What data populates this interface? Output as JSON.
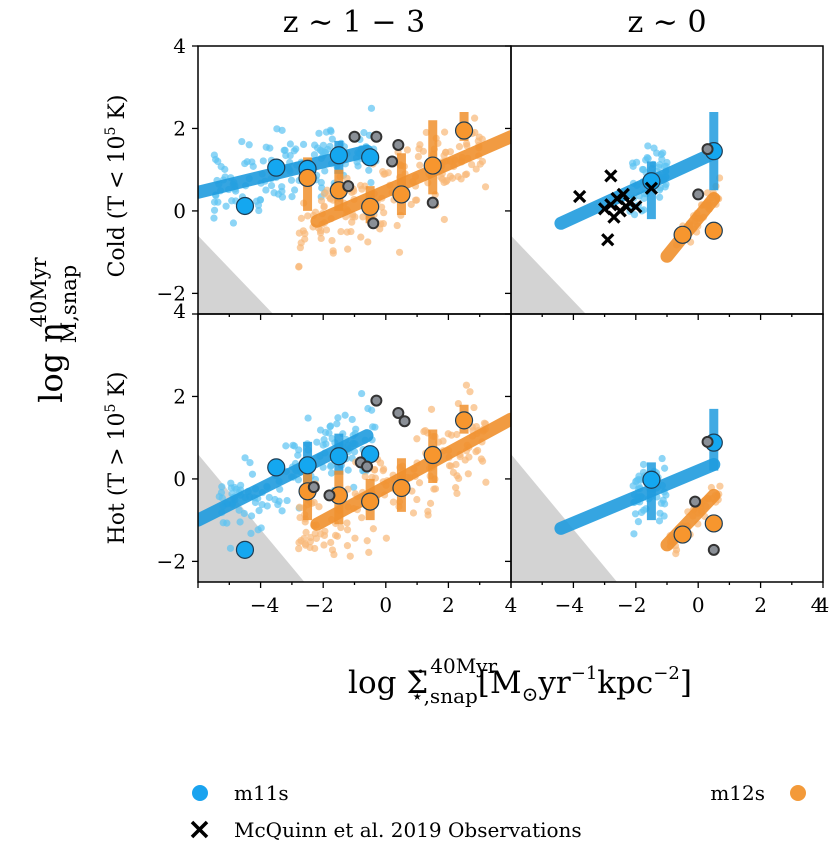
{
  "figure": {
    "col_titles": [
      "z ∼ 1 − 3",
      "z ∼ 0"
    ],
    "row_labels": {
      "cold": {
        "prefix": "Cold (T < 10",
        "sup": "5",
        "suffix": " K)"
      },
      "hot": {
        "prefix": "Hot (T > 10",
        "sup": "5",
        "suffix": " K)"
      }
    },
    "ylabel": {
      "main": "log η",
      "sub": "M,snap",
      "sup": "40Myr"
    },
    "xlabel": {
      "main": "log Σ̇",
      "sub": "⋆,snap",
      "sup": "40Myr",
      "units_a": "[M",
      "sun": "⊙",
      "units_b": "yr",
      "exp1": "−1",
      "units_c": "kpc",
      "exp2": "−2",
      "units_d": "]"
    },
    "legend": {
      "m11s": "m11s",
      "m12s": "m12s",
      "obs": "McQuinn et al. 2019 Observations"
    },
    "colors": {
      "m11s": "#1f9bde",
      "m11s_light": "#5cc3f2",
      "m12s": "#f0902e",
      "m12s_light": "#f8b877",
      "shade": "#d3d3d3"
    }
  },
  "chart_data": [
    {
      "type": "scatter",
      "panel": "cold, z~1-3",
      "xlim": [
        -6,
        4
      ],
      "ylim": [
        -2.5,
        4
      ],
      "xticks": [
        "−2",
        "0",
        "2",
        "4"
      ],
      "yticks": [
        "−2",
        "0",
        "2",
        "4"
      ],
      "shaded_region": {
        "x": [
          -6,
          -6,
          -3.6
        ],
        "y": [
          -0.6,
          -2.5,
          -2.5
        ]
      },
      "series": [
        {
          "name": "m11s",
          "fit": {
            "x": [
              -6,
              -0.6
            ],
            "y": [
              0.45,
              1.45
            ]
          },
          "medians": [
            {
              "x": -4.5,
              "y": 0.12
            },
            {
              "x": -3.5,
              "y": 1.05
            },
            {
              "x": -2.5,
              "y": 1.02
            },
            {
              "x": -1.5,
              "y": 1.35
            },
            {
              "x": -0.5,
              "y": 1.3
            }
          ],
          "errorbars": [
            {
              "x": -1.5,
              "lo": 0.9,
              "hi": 1.7
            }
          ]
        },
        {
          "name": "m12s",
          "fit": {
            "x": [
              -2.2,
              4
            ],
            "y": [
              -0.25,
              1.8
            ]
          },
          "medians": [
            {
              "x": -2.5,
              "y": 0.8
            },
            {
              "x": -1.5,
              "y": 0.5
            },
            {
              "x": -0.5,
              "y": 0.1
            },
            {
              "x": 0.5,
              "y": 0.4
            },
            {
              "x": 1.5,
              "y": 1.1
            },
            {
              "x": 2.5,
              "y": 1.95
            }
          ],
          "errorbars": [
            {
              "x": -2.5,
              "lo": 0.0,
              "hi": 1.3
            },
            {
              "x": -1.5,
              "lo": 0.0,
              "hi": 1.0
            },
            {
              "x": -0.5,
              "lo": -0.3,
              "hi": 0.6
            },
            {
              "x": 0.5,
              "lo": -0.1,
              "hi": 1.4
            },
            {
              "x": 1.5,
              "lo": 0.4,
              "hi": 2.2
            },
            {
              "x": 2.5,
              "lo": 1.7,
              "hi": 2.4
            }
          ]
        }
      ]
    },
    {
      "type": "scatter",
      "panel": "cold, z~0",
      "xlim": [
        -6,
        4
      ],
      "ylim": [
        -2.5,
        4
      ],
      "xticks": [
        "−2",
        "0",
        "2",
        "4"
      ],
      "yticks": [
        "−2",
        "0",
        "2",
        "4"
      ],
      "shaded_region": {
        "x": [
          -6,
          -6,
          -3.6
        ],
        "y": [
          -0.6,
          -2.5,
          -2.5
        ]
      },
      "series": [
        {
          "name": "m11s",
          "fit": {
            "x": [
              -4.4,
              0.5
            ],
            "y": [
              -0.3,
              1.4
            ]
          },
          "medians": [
            {
              "x": -1.5,
              "y": 0.72
            },
            {
              "x": 0.5,
              "y": 1.45
            }
          ],
          "errorbars": [
            {
              "x": -1.5,
              "lo": -0.2,
              "hi": 1.2
            },
            {
              "x": 0.5,
              "lo": 0.5,
              "hi": 2.4
            }
          ]
        },
        {
          "name": "m12s",
          "fit": {
            "x": [
              -1.0,
              0.5
            ],
            "y": [
              -1.1,
              0.3
            ]
          },
          "medians": [
            {
              "x": -0.5,
              "y": -0.58
            },
            {
              "x": 0.5,
              "y": -0.48
            }
          ],
          "errorbars": []
        },
        {
          "name": "McQuinn et al. 2019 Observations",
          "points": [
            {
              "x": -3.8,
              "y": 0.35
            },
            {
              "x": -3.0,
              "y": 0.05
            },
            {
              "x": -2.8,
              "y": 0.15
            },
            {
              "x": -2.7,
              "y": -0.15
            },
            {
              "x": -2.6,
              "y": 0.3
            },
            {
              "x": -2.5,
              "y": 0.0
            },
            {
              "x": -2.4,
              "y": 0.4
            },
            {
              "x": -2.3,
              "y": 0.1
            },
            {
              "x": -2.2,
              "y": 0.2
            },
            {
              "x": -2.0,
              "y": 0.1
            },
            {
              "x": -1.5,
              "y": 0.55
            },
            {
              "x": -2.8,
              "y": 0.85
            },
            {
              "x": -2.9,
              "y": -0.7
            }
          ]
        }
      ]
    },
    {
      "type": "scatter",
      "panel": "hot, z~1-3",
      "xlim": [
        -6,
        4
      ],
      "ylim": [
        -2.5,
        4
      ],
      "xticks": [
        "−2",
        "0",
        "2",
        "4"
      ],
      "yticks": [
        "−2",
        "0",
        "2",
        "4"
      ],
      "shaded_region": {
        "x": [
          -6,
          -6,
          -2.6
        ],
        "y": [
          0.6,
          -2.5,
          -2.5
        ]
      },
      "series": [
        {
          "name": "m11s",
          "fit": {
            "x": [
              -6,
              -0.6
            ],
            "y": [
              -1.0,
              1.05
            ]
          },
          "medians": [
            {
              "x": -4.5,
              "y": -1.72
            },
            {
              "x": -3.5,
              "y": 0.28
            },
            {
              "x": -2.5,
              "y": 0.33
            },
            {
              "x": -1.5,
              "y": 0.55
            },
            {
              "x": -0.5,
              "y": 0.6
            }
          ],
          "errorbars": [
            {
              "x": -2.5,
              "lo": -0.2,
              "hi": 0.9
            },
            {
              "x": -1.5,
              "lo": 0.1,
              "hi": 1.1
            }
          ]
        },
        {
          "name": "m12s",
          "fit": {
            "x": [
              -2.2,
              4
            ],
            "y": [
              -1.1,
              1.45
            ]
          },
          "medians": [
            {
              "x": -2.5,
              "y": -0.3
            },
            {
              "x": -1.5,
              "y": -0.4
            },
            {
              "x": -0.5,
              "y": -0.55
            },
            {
              "x": 0.5,
              "y": -0.22
            },
            {
              "x": 1.5,
              "y": 0.58
            },
            {
              "x": 2.5,
              "y": 1.42
            }
          ],
          "errorbars": [
            {
              "x": -2.5,
              "lo": -1.0,
              "hi": 0.3
            },
            {
              "x": -1.5,
              "lo": -1.1,
              "hi": 0.2
            },
            {
              "x": -0.5,
              "lo": -1.0,
              "hi": 0.0
            },
            {
              "x": 0.5,
              "lo": -0.8,
              "hi": 0.5
            },
            {
              "x": 1.5,
              "lo": -0.1,
              "hi": 1.2
            },
            {
              "x": 2.5,
              "lo": 1.1,
              "hi": 1.8
            }
          ]
        }
      ]
    },
    {
      "type": "scatter",
      "panel": "hot, z~0",
      "xlim": [
        -6,
        4
      ],
      "ylim": [
        -2.5,
        4
      ],
      "xticks": [
        "−2",
        "0",
        "2",
        "4"
      ],
      "yticks": [
        "−2",
        "0",
        "2",
        "4"
      ],
      "shaded_region": {
        "x": [
          -6,
          -6,
          -2.6
        ],
        "y": [
          0.6,
          -2.5,
          -2.5
        ]
      },
      "series": [
        {
          "name": "m11s",
          "fit": {
            "x": [
              -4.4,
              0.5
            ],
            "y": [
              -1.2,
              0.35
            ]
          },
          "medians": [
            {
              "x": -1.5,
              "y": -0.02
            },
            {
              "x": 0.5,
              "y": 0.88
            }
          ],
          "errorbars": [
            {
              "x": -1.5,
              "lo": -1.0,
              "hi": 0.4
            },
            {
              "x": 0.5,
              "lo": 0.2,
              "hi": 1.7
            }
          ]
        },
        {
          "name": "m12s",
          "fit": {
            "x": [
              -1.0,
              0.5
            ],
            "y": [
              -1.6,
              -0.4
            ]
          },
          "medians": [
            {
              "x": -0.5,
              "y": -1.35
            },
            {
              "x": 0.5,
              "y": -1.08
            }
          ],
          "errorbars": []
        }
      ]
    }
  ]
}
